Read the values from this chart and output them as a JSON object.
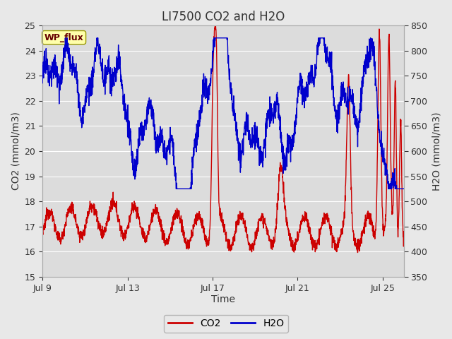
{
  "title": "LI7500 CO2 and H2O",
  "xlabel": "Time",
  "ylabel_left": "CO2 (mmol/m3)",
  "ylabel_right": "H2O (mmol/m3)",
  "ylim_left": [
    15.0,
    25.0
  ],
  "ylim_right": [
    350,
    850
  ],
  "yticks_left": [
    15.0,
    16.0,
    17.0,
    18.0,
    19.0,
    20.0,
    21.0,
    22.0,
    23.0,
    24.0,
    25.0
  ],
  "yticks_right": [
    350,
    400,
    450,
    500,
    550,
    600,
    650,
    700,
    750,
    800,
    850
  ],
  "x_tick_labels": [
    "Jul 9",
    "Jul 13",
    "Jul 17",
    "Jul 21",
    "Jul 25"
  ],
  "x_tick_positions": [
    0,
    4,
    8,
    12,
    16
  ],
  "co2_color": "#cc0000",
  "h2o_color": "#0000cc",
  "fig_bg_color": "#e8e8e8",
  "plot_bg_color": "#dcdcdc",
  "grid_color": "#ffffff",
  "annotation_text": "WP_flux",
  "annotation_bg": "#ffffaa",
  "annotation_border": "#999900",
  "title_fontsize": 12,
  "axis_label_fontsize": 10,
  "tick_fontsize": 9,
  "legend_fontsize": 10,
  "linewidth": 1.0
}
